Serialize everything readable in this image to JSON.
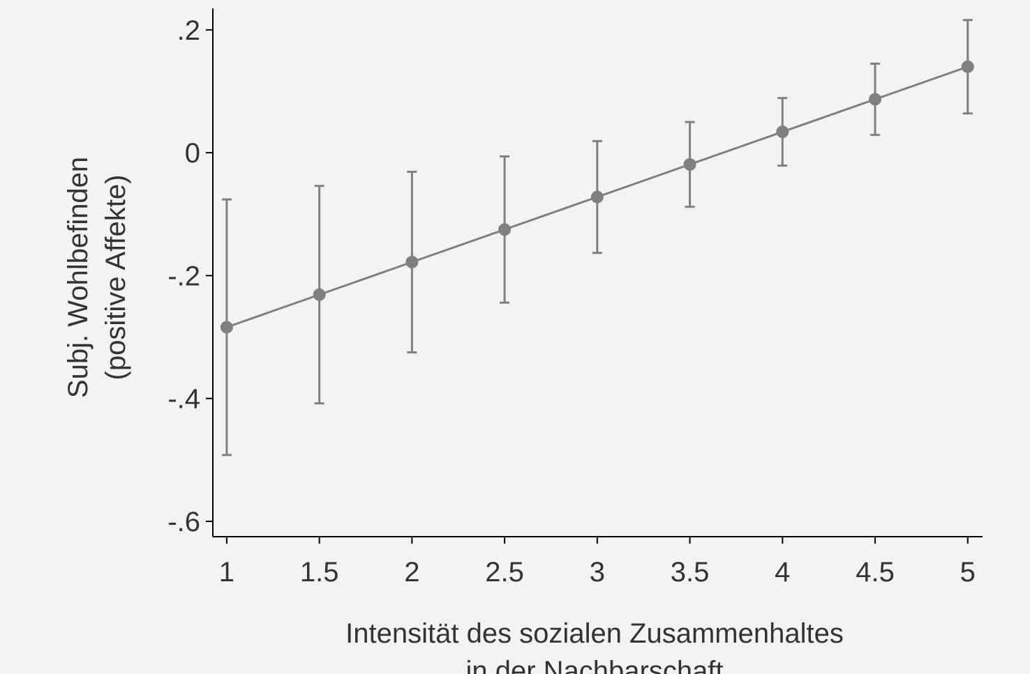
{
  "chart_data": {
    "type": "line",
    "title": "",
    "xlabel": [
      "Intensität des sozialen Zusammenhaltes",
      "in der Nachbarschaft"
    ],
    "ylabel": [
      "Subj. Wohlbefinden",
      "(positive Affekte)"
    ],
    "x_ticks": [
      {
        "value": 1,
        "label": "1"
      },
      {
        "value": 1.5,
        "label": "1.5"
      },
      {
        "value": 2,
        "label": "2"
      },
      {
        "value": 2.5,
        "label": "2.5"
      },
      {
        "value": 3,
        "label": "3"
      },
      {
        "value": 3.5,
        "label": "3.5"
      },
      {
        "value": 4,
        "label": "4"
      },
      {
        "value": 4.5,
        "label": "4.5"
      },
      {
        "value": 5,
        "label": "5"
      }
    ],
    "y_ticks": [
      {
        "value": 0.2,
        "label": ".2"
      },
      {
        "value": 0,
        "label": "0"
      },
      {
        "value": -0.2,
        "label": "-.2"
      },
      {
        "value": -0.4,
        "label": "-.4"
      },
      {
        "value": -0.6,
        "label": "-.6"
      }
    ],
    "xlim": [
      0.925,
      5.08
    ],
    "ylim": [
      -0.625,
      0.235
    ],
    "grid": false,
    "colors": {
      "series": "#808080",
      "axis": "#000000",
      "text": "#333333",
      "background": "#f2f3f5"
    },
    "series": [
      {
        "x": [
          1,
          1.5,
          2,
          2.5,
          3,
          3.5,
          4,
          4.5,
          5
        ],
        "y": [
          -0.284,
          -0.231,
          -0.178,
          -0.125,
          -0.072,
          -0.019,
          0.034,
          0.087,
          0.14
        ],
        "ci_lower": [
          -0.492,
          -0.408,
          -0.325,
          -0.244,
          -0.163,
          -0.088,
          -0.021,
          0.029,
          0.064
        ],
        "ci_upper": [
          -0.076,
          -0.054,
          -0.031,
          -0.006,
          0.019,
          0.05,
          0.089,
          0.145,
          0.216
        ]
      }
    ]
  }
}
